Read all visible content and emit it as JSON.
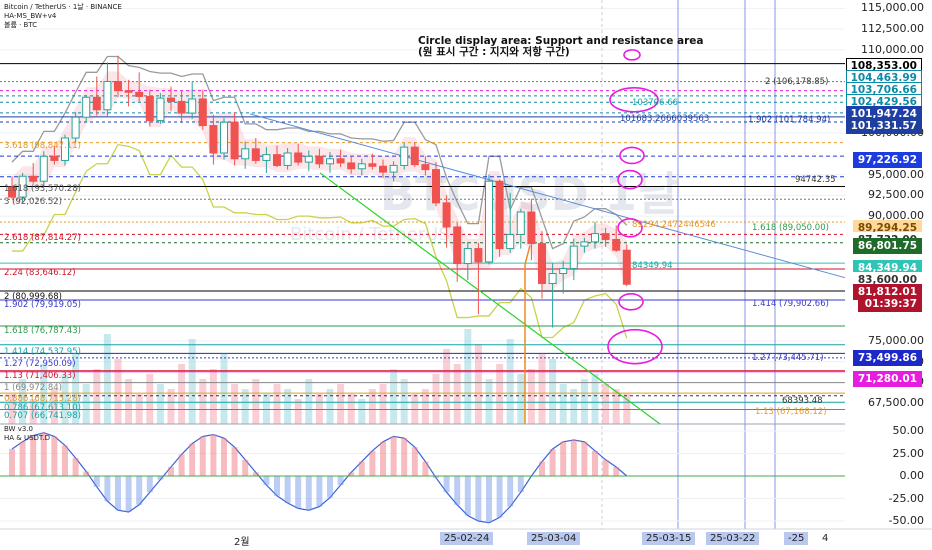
{
  "header": {
    "symbol_line": "Bitcoin / TetherUS · 1날 · BINANCE",
    "indicator_line": "HA-MS_BW+v4",
    "volume_line": "볼륨 · BTC"
  },
  "annotation": {
    "line1": "Circle display area: Support and resistance area",
    "line2": "(원 표시 구간 : 지지와 저항 구간)"
  },
  "watermark": {
    "main": "BTCUSD 1날",
    "sub": "Bitcoin / TetherUS"
  },
  "oscillator": {
    "title_line1": "BW v3.0",
    "title_line2": "HA & USDT.D",
    "ticks": [
      "50.00",
      "25.00",
      "0.00",
      "-25.00",
      "-50.00"
    ]
  },
  "price_axis": {
    "ticks": [
      "115,000.00",
      "112,500.00",
      "110,000.00",
      "100,000.00",
      "95,000.00",
      "92,500.00",
      "90,000.00",
      "75,000.00",
      "72,500.00",
      "70,000.00",
      "67,500.00"
    ]
  },
  "badges": [
    {
      "text": "108,353.00",
      "bg": "#ffffff",
      "fg": "#000000",
      "border": "#000000"
    },
    {
      "text": "104,463.99",
      "bg": "#ffffff",
      "fg": "#0b8aa8",
      "border": "#0b8aa8"
    },
    {
      "text": "103,706.66",
      "bg": "#ffffff",
      "fg": "#0b8aa8",
      "border": "#0b8aa8"
    },
    {
      "text": "102,429.56",
      "bg": "#ffffff",
      "fg": "#0b8aa8",
      "border": "#0b8aa8"
    },
    {
      "text": "101,947.24",
      "bg": "#1e3fa8",
      "fg": "#ffffff",
      "border": "#1e3fa8"
    },
    {
      "text": "101,331.57",
      "bg": "#1f3f9e",
      "fg": "#ffffff",
      "border": "#1f3f9e"
    },
    {
      "text": "97,226.92",
      "bg": "#1c3ce0",
      "fg": "#ffffff",
      "border": "#1c3ce0"
    },
    {
      "text": "89,294.25",
      "bg": "#ffd89a",
      "fg": "#7a4a00",
      "border": "#ffd89a"
    },
    {
      "text": "87,732.00",
      "bg": "#ffffff",
      "fg": "#333333",
      "border": "#ffffff"
    },
    {
      "text": "86,801.75",
      "bg": "#1e6b2a",
      "fg": "#ffffff",
      "border": "#1e6b2a"
    },
    {
      "text": "84,349.94",
      "bg": "#2ec4b6",
      "fg": "#ffffff",
      "border": "#2ec4b6"
    },
    {
      "text": "83,600.00",
      "bg": "#ffffff",
      "fg": "#333333",
      "border": "#ffffff"
    },
    {
      "text": "81,812.01",
      "bg": "#b0142c",
      "fg": "#ffffff",
      "border": "#b0142c"
    },
    {
      "text": "01:39:37",
      "bg": "#b0142c",
      "fg": "#ffffff",
      "border": "#b0142c"
    },
    {
      "text": "73,499.86",
      "bg": "#1c28c8",
      "fg": "#ffffff",
      "border": "#1c28c8"
    },
    {
      "text": "71,280.01",
      "bg": "#e81ce0",
      "fg": "#ffffff",
      "border": "#e81ce0"
    }
  ],
  "fib_left": [
    {
      "text": "3.618 (98,847.11)",
      "color": "#e39b2f"
    },
    {
      "text": "1.618 (93,570.28)",
      "color": "#555555"
    },
    {
      "text": "3 (92,026.52)",
      "color": "#555555"
    },
    {
      "text": "2.618 (87,814.27)",
      "color": "#d2142c"
    },
    {
      "text": "2.24 (83,646.12)",
      "color": "#d2142c"
    },
    {
      "text": "2 (80,999.68)",
      "color": "#111111"
    },
    {
      "text": "1.902 (79,919.05)",
      "color": "#3a3ac8"
    },
    {
      "text": "1.618 (76,787.43)",
      "color": "#2e9a4a"
    },
    {
      "text": "1.414 (74,537.95)",
      "color": "#16a3a3"
    },
    {
      "text": "1.27 (72,950.09)",
      "color": "#3a3ac8"
    },
    {
      "text": "1.13 (71,406.33)",
      "color": "#d2142c"
    },
    {
      "text": "1 (69,972.84)",
      "color": "#888888"
    },
    {
      "text": "0.886 (68,715.28)",
      "color": "#e39b2f"
    },
    {
      "text": "0.786 (67,613.10)",
      "color": "#16a3a3"
    },
    {
      "text": "0.707 (66,741.98)",
      "color": "#16a3a3"
    }
  ],
  "fib_right": [
    {
      "text": "2 (106,178.85)",
      "color": "#333333"
    },
    {
      "text": "103706.66",
      "color": "#16a3a3"
    },
    {
      "text": "101683.2666039563",
      "color": "#1e3fa8"
    },
    {
      "text": "1.902 (101,784.94)",
      "color": "#1e3fa8"
    },
    {
      "text": "94742.35",
      "color": "#333333"
    },
    {
      "text": "89294.2472446546",
      "color": "#e39b2f"
    },
    {
      "text": "1.618 (89,050.00)",
      "color": "#2e9a4a"
    },
    {
      "text": "84349.94",
      "color": "#16a3a3"
    },
    {
      "text": "1.414 (79,902.66)",
      "color": "#3a3ac8"
    },
    {
      "text": "1.27 (73,445.71)",
      "color": "#3a3ac8"
    },
    {
      "text": "68393.48",
      "color": "#333333"
    },
    {
      "text": "1.13 (67,168.12)",
      "color": "#e39b2f"
    }
  ],
  "time_axis": {
    "labels": [
      {
        "text": "2월",
        "highlight": false
      },
      {
        "text": "25-02-24",
        "highlight": true
      },
      {
        "text": "25-03-04",
        "highlight": true
      },
      {
        "text": "25-03-15",
        "highlight": true
      },
      {
        "text": "25-03-22",
        "highlight": true
      },
      {
        "text": "-25",
        "highlight": true
      },
      {
        "text": "4",
        "highlight": false
      }
    ]
  },
  "chart_data": {
    "type": "candlestick",
    "symbol": "Bitcoin / TetherUS",
    "interval": "1날",
    "exchange": "BINANCE",
    "y_range": [
      65000,
      116000
    ],
    "candles": [
      {
        "o": 93500,
        "h": 94800,
        "l": 92100,
        "c": 92300
      },
      {
        "o": 92300,
        "h": 95200,
        "l": 91600,
        "c": 94800
      },
      {
        "o": 94800,
        "h": 96400,
        "l": 93900,
        "c": 94200
      },
      {
        "o": 94200,
        "h": 97800,
        "l": 93600,
        "c": 97200
      },
      {
        "o": 97200,
        "h": 98400,
        "l": 96200,
        "c": 96700
      },
      {
        "o": 96700,
        "h": 99800,
        "l": 96100,
        "c": 99400
      },
      {
        "o": 99400,
        "h": 102500,
        "l": 98800,
        "c": 101900
      },
      {
        "o": 101900,
        "h": 104600,
        "l": 101300,
        "c": 104300
      },
      {
        "o": 104300,
        "h": 106800,
        "l": 102100,
        "c": 102800
      },
      {
        "o": 102800,
        "h": 108500,
        "l": 101900,
        "c": 106200
      },
      {
        "o": 106200,
        "h": 109300,
        "l": 104300,
        "c": 105100
      },
      {
        "o": 105100,
        "h": 106400,
        "l": 103200,
        "c": 104900
      },
      {
        "o": 104900,
        "h": 107300,
        "l": 103800,
        "c": 104400
      },
      {
        "o": 104400,
        "h": 105200,
        "l": 100800,
        "c": 101500
      },
      {
        "o": 101500,
        "h": 104800,
        "l": 101100,
        "c": 104200
      },
      {
        "o": 104200,
        "h": 105600,
        "l": 102600,
        "c": 103800
      },
      {
        "o": 103800,
        "h": 105100,
        "l": 101200,
        "c": 102400
      },
      {
        "o": 102400,
        "h": 106200,
        "l": 101700,
        "c": 104100
      },
      {
        "o": 104100,
        "h": 105200,
        "l": 100400,
        "c": 100900
      },
      {
        "o": 100900,
        "h": 102200,
        "l": 96200,
        "c": 97600
      },
      {
        "o": 97600,
        "h": 101800,
        "l": 96800,
        "c": 101300
      },
      {
        "o": 101300,
        "h": 102500,
        "l": 96100,
        "c": 96900
      },
      {
        "o": 96900,
        "h": 99000,
        "l": 95700,
        "c": 98100
      },
      {
        "o": 98100,
        "h": 99400,
        "l": 96300,
        "c": 96700
      },
      {
        "o": 96700,
        "h": 98300,
        "l": 95200,
        "c": 97400
      },
      {
        "o": 97400,
        "h": 98500,
        "l": 95900,
        "c": 96100
      },
      {
        "o": 96100,
        "h": 98200,
        "l": 95600,
        "c": 97600
      },
      {
        "o": 97600,
        "h": 98700,
        "l": 96100,
        "c": 96500
      },
      {
        "o": 96500,
        "h": 97900,
        "l": 95400,
        "c": 97200
      },
      {
        "o": 97200,
        "h": 98100,
        "l": 95800,
        "c": 96300
      },
      {
        "o": 96300,
        "h": 97700,
        "l": 95200,
        "c": 96900
      },
      {
        "o": 96900,
        "h": 98000,
        "l": 95900,
        "c": 96400
      },
      {
        "o": 96400,
        "h": 97300,
        "l": 95100,
        "c": 95700
      },
      {
        "o": 95700,
        "h": 96900,
        "l": 94900,
        "c": 96300
      },
      {
        "o": 96300,
        "h": 97500,
        "l": 95600,
        "c": 96000
      },
      {
        "o": 96000,
        "h": 96800,
        "l": 94600,
        "c": 95300
      },
      {
        "o": 95300,
        "h": 96600,
        "l": 94200,
        "c": 96100
      },
      {
        "o": 96100,
        "h": 98800,
        "l": 95600,
        "c": 98300
      },
      {
        "o": 98300,
        "h": 98900,
        "l": 95900,
        "c": 96200
      },
      {
        "o": 96200,
        "h": 97200,
        "l": 94900,
        "c": 95600
      },
      {
        "o": 95600,
        "h": 96500,
        "l": 91200,
        "c": 91600
      },
      {
        "o": 91600,
        "h": 92500,
        "l": 86200,
        "c": 88700
      },
      {
        "o": 88700,
        "h": 89200,
        "l": 82100,
        "c": 84300
      },
      {
        "o": 84300,
        "h": 86900,
        "l": 82300,
        "c": 86100
      },
      {
        "o": 86100,
        "h": 86800,
        "l": 78200,
        "c": 84500
      },
      {
        "o": 84500,
        "h": 95000,
        "l": 84200,
        "c": 94200
      },
      {
        "o": 94200,
        "h": 94400,
        "l": 85100,
        "c": 86100
      },
      {
        "o": 86100,
        "h": 92800,
        "l": 85600,
        "c": 87800
      },
      {
        "o": 87800,
        "h": 90900,
        "l": 86100,
        "c": 90500
      },
      {
        "o": 90500,
        "h": 92100,
        "l": 84700,
        "c": 86700
      },
      {
        "o": 86700,
        "h": 88200,
        "l": 80100,
        "c": 81900
      },
      {
        "o": 81900,
        "h": 84400,
        "l": 76600,
        "c": 83100
      },
      {
        "o": 83100,
        "h": 84600,
        "l": 80700,
        "c": 83700
      },
      {
        "o": 83700,
        "h": 87300,
        "l": 82300,
        "c": 86400
      },
      {
        "o": 86400,
        "h": 87400,
        "l": 85600,
        "c": 86900
      },
      {
        "o": 86900,
        "h": 89300,
        "l": 86100,
        "c": 87900
      },
      {
        "o": 87900,
        "h": 88600,
        "l": 86300,
        "c": 87200
      },
      {
        "o": 87200,
        "h": 88900,
        "l": 85700,
        "c": 85900
      },
      {
        "o": 85900,
        "h": 86600,
        "l": 81600,
        "c": 81812
      }
    ],
    "levels": [
      108353.0,
      104463.99,
      103706.66,
      102429.56,
      101947.24,
      101331.57,
      97226.92,
      94742.35,
      89294.25,
      86801.75,
      84349.94,
      81812.01,
      73499.86,
      71280.01,
      68393.48
    ],
    "oscillator": {
      "name": "BW v3.0",
      "range": [
        -55,
        55
      ],
      "values": [
        30,
        38,
        45,
        48,
        44,
        34,
        20,
        5,
        -12,
        -28,
        -38,
        -40,
        -32,
        -18,
        -4,
        10,
        24,
        36,
        44,
        46,
        42,
        32,
        18,
        4,
        -10,
        -22,
        -30,
        -36,
        -38,
        -34,
        -24,
        -10,
        4,
        16,
        28,
        38,
        44,
        42,
        32,
        16,
        -2,
        -18,
        -32,
        -44,
        -50,
        -52,
        -46,
        -34,
        -18,
        0,
        16,
        30,
        38,
        40,
        38,
        28,
        18,
        10,
        0
      ]
    }
  }
}
